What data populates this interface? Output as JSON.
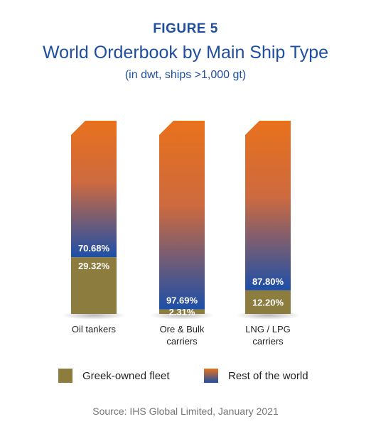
{
  "header": {
    "figure_label": "FIGURE 5",
    "title": "World Orderbook by Main Ship Type",
    "subtitle": "(in dwt, ships >1,000 gt)"
  },
  "chart_data": {
    "type": "bar",
    "stacked": true,
    "percent_stacked": true,
    "categories": [
      [
        "Oil tankers"
      ],
      [
        "Ore & Bulk",
        "carriers"
      ],
      [
        "LNG / LPG",
        "carriers"
      ]
    ],
    "series": [
      {
        "name": "Greek-owned fleet",
        "values": [
          29.32,
          2.31,
          12.2
        ],
        "labels": [
          "29.32%",
          "2.31%",
          "12.20%"
        ],
        "color": "#8c7d3e"
      },
      {
        "name": "Rest of the world",
        "values": [
          70.68,
          97.69,
          87.8
        ],
        "labels": [
          "70.68%",
          "97.69%",
          "87.80%"
        ],
        "color_top": "#e8711c",
        "color_bottom": "#1d4fa8"
      }
    ],
    "ylim": [
      0,
      100
    ],
    "grid": false,
    "legend_position": "bottom"
  },
  "legend": [
    {
      "label": "Greek-owned fleet",
      "color": "#8c7d3e"
    },
    {
      "label": "Rest of the world",
      "gradient": [
        "#e8711c",
        "#1d4fa8"
      ]
    }
  ],
  "source": "Source: IHS Global Limited, January 2021"
}
